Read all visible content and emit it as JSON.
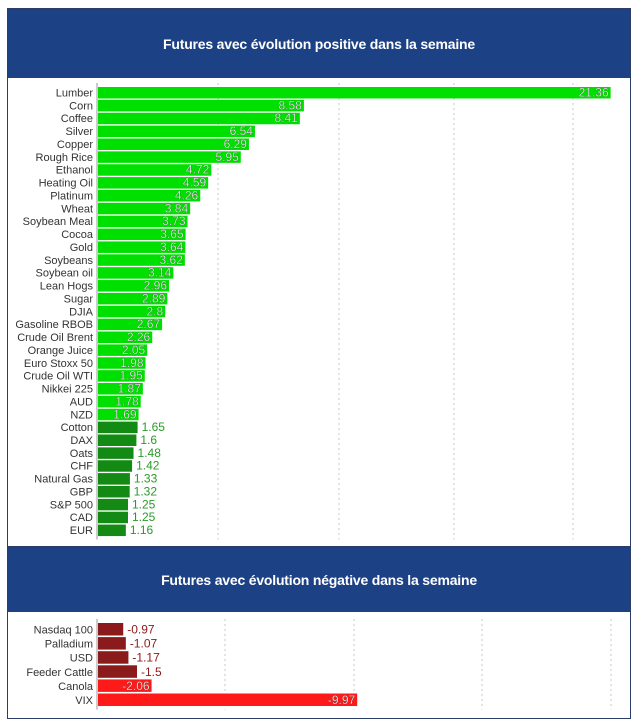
{
  "positive": {
    "title": "Futures avec évolution positive dans la semaine",
    "bar_color_light": "#00e000",
    "bar_color_dark": "#138a13",
    "label_color_outside": "#2a9a2a"
  },
  "negative": {
    "title": "Futures avec évolution négative dans la semaine",
    "bar_color_light": "#ff1a1a",
    "bar_color_dark": "#8b1a1a",
    "label_color_outside": "#8b1a1a"
  },
  "chart_data": [
    {
      "type": "bar",
      "orientation": "horizontal",
      "title": "Futures avec évolution positive dans la semaine",
      "categories": [
        "Lumber",
        "Corn",
        "Coffee",
        "Silver",
        "Copper",
        "Rough Rice",
        "Ethanol",
        "Heating Oil",
        "Platinum",
        "Wheat",
        "Soybean Meal",
        "Cocoa",
        "Gold",
        "Soybeans",
        "Soybean oil",
        "Lean Hogs",
        "Sugar",
        "DJIA",
        "Gasoline RBOB",
        "Crude Oil Brent",
        "Orange Juice",
        "Euro Stoxx 50",
        "Crude Oil WTI",
        "Nikkei 225",
        "AUD",
        "NZD",
        "Cotton",
        "DAX",
        "Oats",
        "CHF",
        "Natural Gas",
        "GBP",
        "S&P 500",
        "CAD",
        "EUR"
      ],
      "values": [
        21.36,
        8.58,
        8.41,
        6.54,
        6.29,
        5.95,
        4.72,
        4.59,
        4.26,
        3.84,
        3.73,
        3.65,
        3.64,
        3.62,
        3.14,
        2.96,
        2.89,
        2.8,
        2.67,
        2.26,
        2.05,
        1.98,
        1.95,
        1.87,
        1.78,
        1.69,
        1.65,
        1.6,
        1.48,
        1.42,
        1.33,
        1.32,
        1.25,
        1.25,
        1.16
      ],
      "xlim": [
        0,
        22
      ],
      "grid": true
    },
    {
      "type": "bar",
      "orientation": "horizontal",
      "title": "Futures avec évolution négative dans la semaine",
      "categories": [
        "Nasdaq 100",
        "Palladium",
        "USD",
        "Feeder Cattle",
        "Canola",
        "VIX"
      ],
      "values": [
        -0.97,
        -1.07,
        -1.17,
        -1.5,
        -2.06,
        -9.97
      ],
      "xlim": [
        0,
        20
      ],
      "grid": true
    }
  ]
}
